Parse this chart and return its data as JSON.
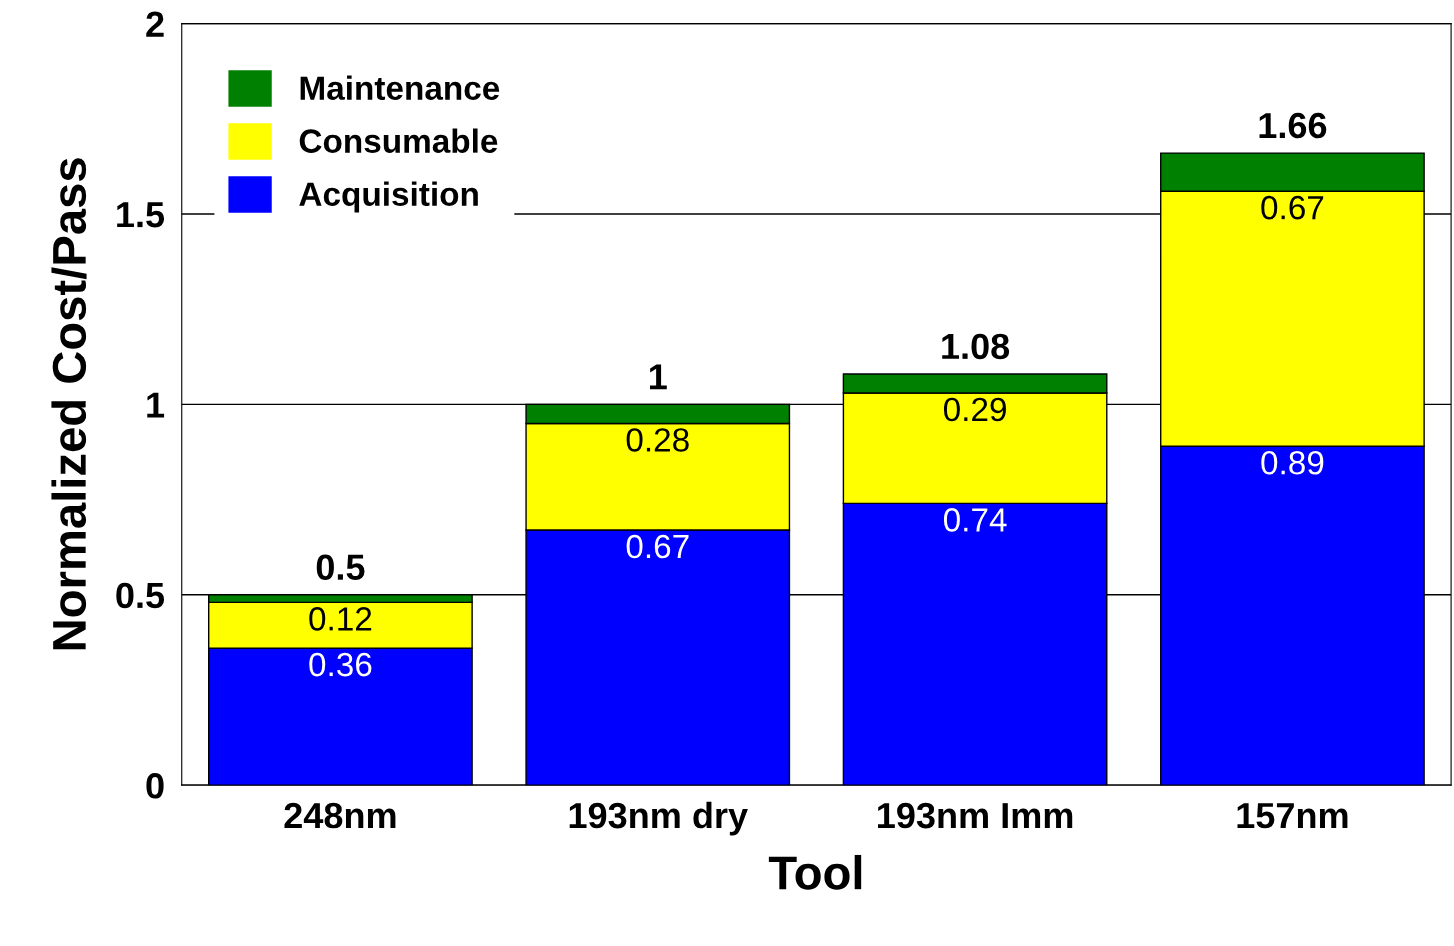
{
  "chart_data": {
    "type": "bar",
    "stacked": true,
    "xlabel": "Tool",
    "ylabel": "Normalized Cost/Pass",
    "categories": [
      "248nm",
      "193nm dry",
      "193nm Imm",
      "157nm"
    ],
    "series": [
      {
        "name": "Acquisition",
        "color": "#0000ff",
        "values": [
          0.36,
          0.67,
          0.74,
          0.89
        ],
        "value_labels": [
          "0.36",
          "0.67",
          "0.74",
          "0.89"
        ]
      },
      {
        "name": "Consumable",
        "color": "#ffff00",
        "values": [
          0.12,
          0.28,
          0.29,
          0.67
        ],
        "value_labels": [
          "0.12",
          "0.28",
          "0.29",
          "0.67"
        ]
      },
      {
        "name": "Maintenance",
        "color": "#008000",
        "values": [
          0.02,
          0.05,
          0.05,
          0.1
        ]
      }
    ],
    "totals": [
      "0.5",
      "1",
      "1.08",
      "1.66"
    ],
    "ylim": [
      0,
      2
    ],
    "yticks": [
      0,
      0.5,
      1,
      1.5,
      2
    ],
    "grid": "y",
    "legend": "top left"
  }
}
